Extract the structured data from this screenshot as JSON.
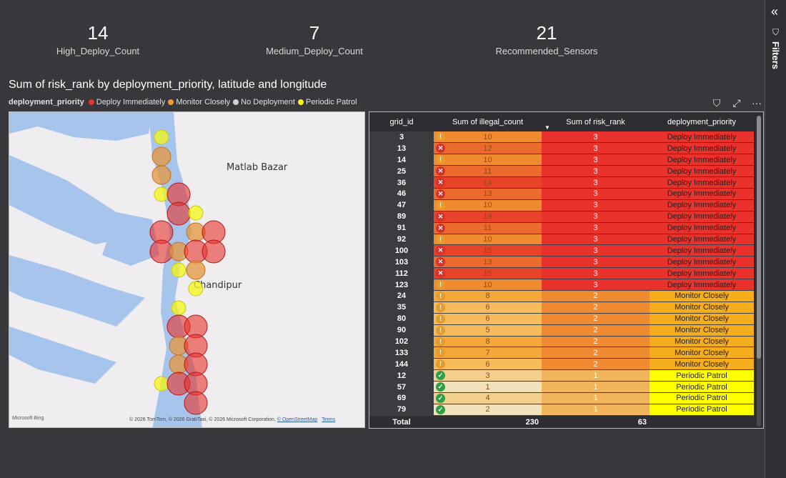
{
  "kpis": [
    {
      "value": "14",
      "label": "High_Deploy_Count"
    },
    {
      "value": "7",
      "label": "Medium_Deploy_Count"
    },
    {
      "value": "21",
      "label": "Recommended_Sensors"
    }
  ],
  "filters_pane": {
    "label": "Filters",
    "collapse_icon": "double-chevron-icon",
    "filter_icon": "funnel-icon"
  },
  "visual": {
    "title": "Sum of risk_rank by deployment_priority, latitude and longitude",
    "legend_title": "deployment_priority",
    "legend": [
      {
        "label": "Deploy Immediately",
        "color": "#e8322b"
      },
      {
        "label": "Monitor Closely",
        "color": "#f0a030"
      },
      {
        "label": "No Deployment",
        "color": "#d0d0d0"
      },
      {
        "label": "Periodic Patrol",
        "color": "#f5f516"
      }
    ],
    "toolbar": {
      "filter": "⛉",
      "focus": "⤢",
      "more": "···"
    }
  },
  "map": {
    "labels": {
      "matlab": "Matlab Bazar",
      "chandipur": "Chandipur"
    },
    "bing": "Microsoft Bing",
    "copyright": "© 2026 TomTom, © 2026 GrabTaxi, © 2026 Microsoft Corporation, ",
    "osm": "© OpenStreetMap",
    "terms": "Terms"
  },
  "table": {
    "headers": [
      "grid_id",
      "Sum of illegal_count",
      "Sum of risk_rank",
      "deployment_priority"
    ],
    "rows": [
      {
        "grid_id": "3",
        "illegal": "10",
        "icon": "warn",
        "risk": "3",
        "priority": "Deploy Immediately"
      },
      {
        "grid_id": "13",
        "illegal": "12",
        "icon": "cross",
        "risk": "3",
        "priority": "Deploy Immediately"
      },
      {
        "grid_id": "14",
        "illegal": "10",
        "icon": "warn",
        "risk": "3",
        "priority": "Deploy Immediately"
      },
      {
        "grid_id": "25",
        "illegal": "11",
        "icon": "cross",
        "risk": "3",
        "priority": "Deploy Immediately"
      },
      {
        "grid_id": "36",
        "illegal": "14",
        "icon": "cross",
        "risk": "3",
        "priority": "Deploy Immediately"
      },
      {
        "grid_id": "46",
        "illegal": "13",
        "icon": "cross",
        "risk": "3",
        "priority": "Deploy Immediately"
      },
      {
        "grid_id": "47",
        "illegal": "10",
        "icon": "warn",
        "risk": "3",
        "priority": "Deploy Immediately"
      },
      {
        "grid_id": "89",
        "illegal": "14",
        "icon": "cross",
        "risk": "3",
        "priority": "Deploy Immediately"
      },
      {
        "grid_id": "91",
        "illegal": "11",
        "icon": "cross",
        "risk": "3",
        "priority": "Deploy Immediately"
      },
      {
        "grid_id": "92",
        "illegal": "10",
        "icon": "warn",
        "risk": "3",
        "priority": "Deploy Immediately"
      },
      {
        "grid_id": "100",
        "illegal": "15",
        "icon": "cross",
        "risk": "3",
        "priority": "Deploy Immediately"
      },
      {
        "grid_id": "103",
        "illegal": "13",
        "icon": "cross",
        "risk": "3",
        "priority": "Deploy Immediately"
      },
      {
        "grid_id": "112",
        "illegal": "15",
        "icon": "cross",
        "risk": "3",
        "priority": "Deploy Immediately"
      },
      {
        "grid_id": "123",
        "illegal": "10",
        "icon": "warn",
        "risk": "3",
        "priority": "Deploy Immediately"
      },
      {
        "grid_id": "24",
        "illegal": "8",
        "icon": "warn",
        "risk": "2",
        "priority": "Monitor Closely"
      },
      {
        "grid_id": "35",
        "illegal": "6",
        "icon": "warn",
        "risk": "2",
        "priority": "Monitor Closely"
      },
      {
        "grid_id": "80",
        "illegal": "6",
        "icon": "warn",
        "risk": "2",
        "priority": "Monitor Closely"
      },
      {
        "grid_id": "90",
        "illegal": "5",
        "icon": "warn",
        "risk": "2",
        "priority": "Monitor Closely"
      },
      {
        "grid_id": "102",
        "illegal": "8",
        "icon": "warn",
        "risk": "2",
        "priority": "Monitor Closely"
      },
      {
        "grid_id": "133",
        "illegal": "7",
        "icon": "warn",
        "risk": "2",
        "priority": "Monitor Closely"
      },
      {
        "grid_id": "144",
        "illegal": "6",
        "icon": "warn",
        "risk": "2",
        "priority": "Monitor Closely"
      },
      {
        "grid_id": "12",
        "illegal": "3",
        "icon": "check",
        "risk": "1",
        "priority": "Periodic Patrol"
      },
      {
        "grid_id": "57",
        "illegal": "1",
        "icon": "check",
        "risk": "1",
        "priority": "Periodic Patrol"
      },
      {
        "grid_id": "69",
        "illegal": "4",
        "icon": "check",
        "risk": "1",
        "priority": "Periodic Patrol"
      },
      {
        "grid_id": "79",
        "illegal": "2",
        "icon": "check",
        "risk": "1",
        "priority": "Periodic Patrol"
      }
    ],
    "total": {
      "label": "Total",
      "illegal": "230",
      "risk": "63"
    }
  }
}
